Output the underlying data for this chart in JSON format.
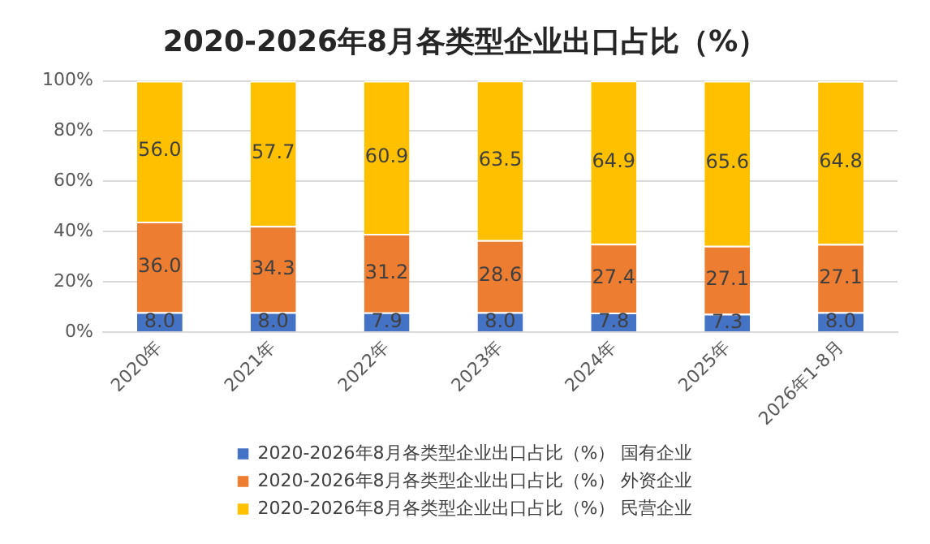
{
  "chart_data": {
    "type": "bar",
    "stacked": true,
    "title": "2020-2026年8月各类型企业出口占比（%）",
    "categories": [
      "2020年",
      "2021年",
      "2022年",
      "2023年",
      "2024年",
      "2025年",
      "2026年1-8月"
    ],
    "series": [
      {
        "name": "2020-2026年8月各类型企业出口占比（%） 国有企业",
        "color": "#4472c4",
        "values": [
          8.0,
          8.0,
          7.9,
          8.0,
          7.8,
          7.3,
          8.0
        ],
        "value_labels": [
          "8.0",
          "8.0",
          "7.9",
          "8.0",
          "7.8",
          "7.3",
          "8.0"
        ]
      },
      {
        "name": "2020-2026年8月各类型企业出口占比（%） 外资企业",
        "color": "#ed7d31",
        "values": [
          36.0,
          34.3,
          31.2,
          28.6,
          27.4,
          27.1,
          27.1
        ],
        "value_labels": [
          "36.0",
          "34.3",
          "31.2",
          "28.6",
          "27.4",
          "27.1",
          "27.1"
        ]
      },
      {
        "name": "2020-2026年8月各类型企业出口占比（%） 民营企业",
        "color": "#ffc000",
        "values": [
          56.0,
          57.7,
          60.9,
          63.5,
          64.9,
          65.6,
          64.8
        ],
        "value_labels": [
          "56.0",
          "57.7",
          "60.9",
          "63.5",
          "64.9",
          "65.6",
          "64.8"
        ]
      }
    ],
    "ylim": [
      0,
      100.1
    ],
    "yticks": [
      {
        "value": 0,
        "label": "0%"
      },
      {
        "value": 20,
        "label": "20%"
      },
      {
        "value": 40,
        "label": "40%"
      },
      {
        "value": 60,
        "label": "60%"
      },
      {
        "value": 80,
        "label": "80%"
      },
      {
        "value": 100,
        "label": "100%"
      }
    ],
    "grid": "y",
    "legend": "bottom"
  }
}
